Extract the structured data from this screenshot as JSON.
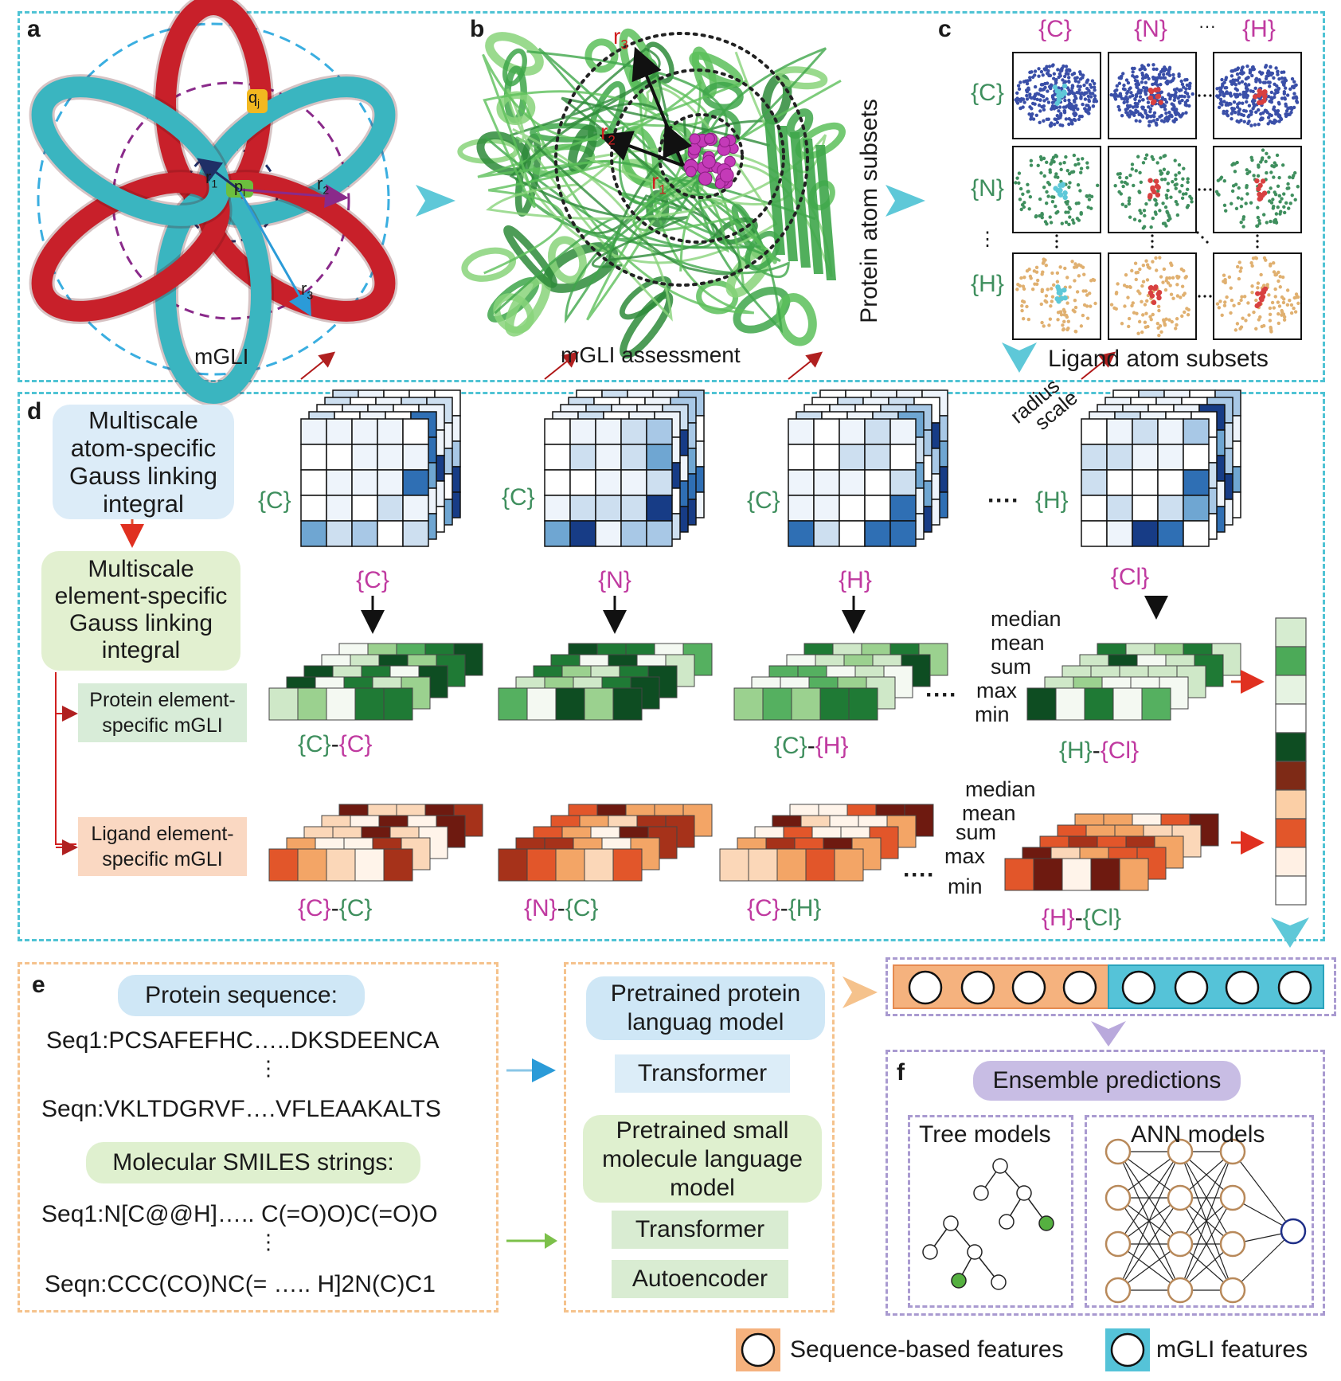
{
  "panels": {
    "a": "a",
    "b": "b",
    "c": "c",
    "d": "d",
    "e": "e",
    "f": "f"
  },
  "panel_a": {
    "caption": "mGLI",
    "labels": {
      "qj": "q",
      "qj_sub": "j",
      "pi": "p",
      "pi_sub": "i",
      "r1": "r",
      "r1_sub": "1",
      "r2": "r",
      "r2_sub": "2",
      "r3": "r",
      "r3_sub": "3"
    }
  },
  "panel_b": {
    "caption": "mGLI assessment",
    "labels": {
      "r1": "r",
      "r1_sub": "1",
      "r2": "r",
      "r2_sub": "2",
      "r3": "r",
      "r3_sub": "3"
    }
  },
  "panel_c": {
    "col_headers": [
      "{C}",
      "{N}",
      "···",
      "{H}"
    ],
    "row_headers": [
      "{C}",
      "{N}",
      "⋮",
      "{H}"
    ],
    "y_label": "Protein atom subsets",
    "x_label": "Ligand atom subsets",
    "colors": {
      "C": "#3a4fa8",
      "N": "#3f8f5e",
      "H": "#e0b070",
      "lig1": "#5ec8d8",
      "lig2": "#d84040"
    }
  },
  "panel_d": {
    "box1": "Multiscale atom-specific Gauss linking integral",
    "box1_lines": [
      "Multiscale",
      "atom-specific",
      "Gauss linking",
      "integral"
    ],
    "box2_lines": [
      "Multiscale",
      "element-specific",
      "Gauss linking",
      "integral"
    ],
    "protein_box_lines": [
      "Protein element-",
      "specific mGLI"
    ],
    "ligand_box_lines": [
      "Ligand element-",
      "specific mGLI"
    ],
    "radius_scale_lines": [
      "radius",
      "scale"
    ],
    "matrix_groups": [
      {
        "row": "{C}",
        "col": "{C}"
      },
      {
        "row": "{C}",
        "col": "{N}"
      },
      {
        "row": "{C}",
        "col": "{H}"
      },
      {
        "row": "{H}",
        "col": "{Cl}"
      }
    ],
    "dots": "····",
    "green_labels": [
      "{C}-{C}",
      "{C}-{H}",
      "{H}-{Cl}"
    ],
    "orange_labels": [
      "{C}-{C}",
      "{N}-{C}",
      "{C}-{H}",
      "{H}-{Cl}"
    ],
    "stats": [
      "median",
      "mean",
      "sum",
      "max",
      "min"
    ]
  },
  "panel_e": {
    "protein_title": "Protein sequence:",
    "seq1": "Seq1:PCSAFEFHC…..DKSDEENCA",
    "seqn": "Seqn:VKLTDGRVF….VFLEAAKALTS",
    "smiles_title": "Molecular SMILES strings:",
    "smi1": "Seq1:N[C@@H]….. C(=O)O)C(=O)O",
    "smin": "Seqn:CCC(CO)NC(= ….. H]2N(C)C1",
    "vdots": "⋮",
    "protein_model_lines": [
      "Pretrained protein",
      "languag model"
    ],
    "transformer": "Transformer",
    "small_model_lines": [
      "Pretrained small",
      "molecule language",
      "model"
    ],
    "transformer2": "Transformer",
    "autoencoder": "Autoencoder"
  },
  "panel_f": {
    "title": "Ensemble predictions",
    "tree": "Tree models",
    "ann": "ANN models"
  },
  "legend": {
    "seq": "Sequence-based features",
    "mgli": "mGLI features"
  }
}
